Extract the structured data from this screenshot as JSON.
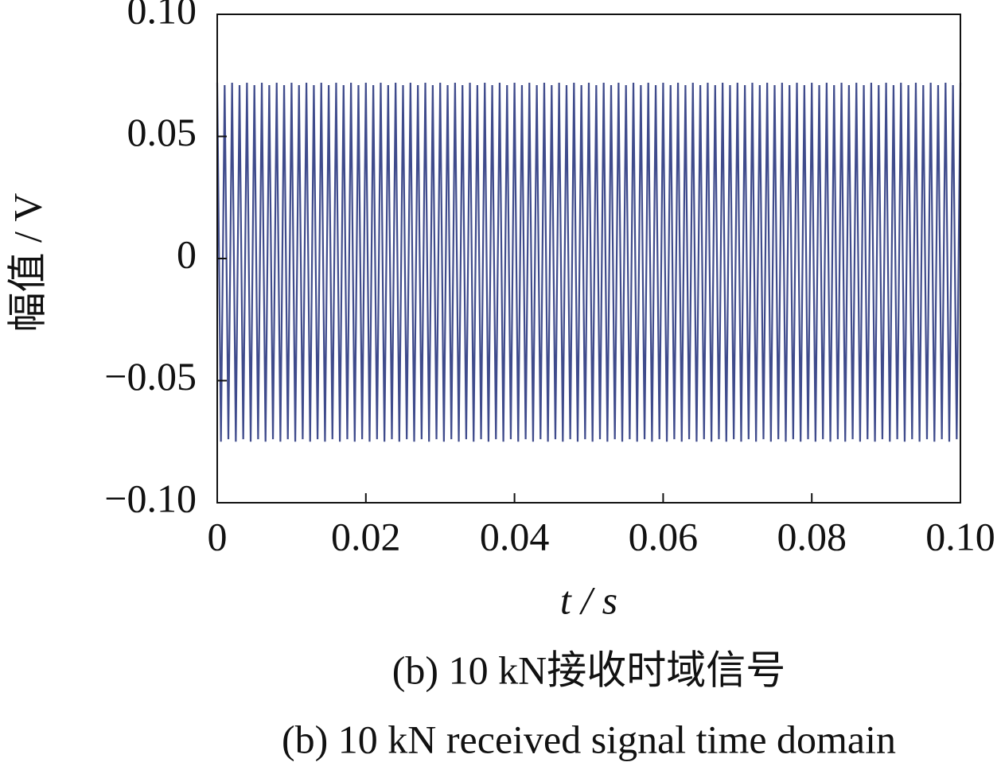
{
  "chart_data": {
    "type": "line",
    "ylabel": "幅值 / V",
    "xlabel": "t / s",
    "captions": [
      "(b)  10 kN接收时域信号",
      "(b)  10 kN received signal time domain"
    ],
    "xlim": [
      0,
      0.1
    ],
    "ylim": [
      -0.1,
      0.1
    ],
    "xticks": [
      0,
      0.02,
      0.04,
      0.06,
      0.08,
      {
        "value": 0.1,
        "label": "0.10"
      }
    ],
    "yticks": [
      {
        "value": -0.1,
        "label": "−0.10"
      },
      {
        "value": -0.05,
        "label": "−0.05"
      },
      0,
      0.05,
      {
        "value": 0.1,
        "label": "0.10"
      }
    ],
    "x": [
      0,
      0.0005,
      0.001,
      0.0015,
      0.002,
      0.0025,
      0.003,
      0.0035,
      0.004,
      0.0045,
      0.005,
      0.0055,
      0.006,
      0.0065,
      0.007,
      0.0075,
      0.008,
      0.0085,
      0.009,
      0.0095,
      0.01,
      0.0105,
      0.011,
      0.0115,
      0.012,
      0.0125,
      0.013,
      0.0135,
      0.014,
      0.0145,
      0.015,
      0.0155,
      0.016,
      0.0165,
      0.017,
      0.0175,
      0.018,
      0.0185,
      0.019,
      0.0195,
      0.02,
      0.0205,
      0.021,
      0.0215,
      0.022,
      0.0225,
      0.023,
      0.0235,
      0.024,
      0.0245,
      0.025,
      0.0255,
      0.026,
      0.0265,
      0.027,
      0.0275,
      0.028,
      0.0285,
      0.029,
      0.0295,
      0.03,
      0.0305,
      0.031,
      0.0315,
      0.032,
      0.0325,
      0.033,
      0.0335,
      0.034,
      0.0345,
      0.035,
      0.0355,
      0.036,
      0.0365,
      0.037,
      0.0375,
      0.038,
      0.0385,
      0.039,
      0.0395,
      0.04,
      0.0405,
      0.041,
      0.0415,
      0.042,
      0.0425,
      0.043,
      0.0435,
      0.044,
      0.0445,
      0.045,
      0.0455,
      0.046,
      0.0465,
      0.047,
      0.0475,
      0.048,
      0.0485,
      0.049,
      0.0495,
      0.05,
      0.0505,
      0.051,
      0.0515,
      0.052,
      0.0525,
      0.053,
      0.0535,
      0.054,
      0.0545,
      0.055,
      0.0555,
      0.056,
      0.0565,
      0.057,
      0.0575,
      0.058,
      0.0585,
      0.059,
      0.0595,
      0.06,
      0.0605,
      0.061,
      0.0615,
      0.062,
      0.0625,
      0.063,
      0.0635,
      0.064,
      0.0645,
      0.065,
      0.0655,
      0.066,
      0.0665,
      0.067,
      0.0675,
      0.068,
      0.0685,
      0.069,
      0.0695,
      0.07,
      0.0705,
      0.071,
      0.0715,
      0.072,
      0.0725,
      0.073,
      0.0735,
      0.074,
      0.0745,
      0.075,
      0.0755,
      0.076,
      0.0765,
      0.077,
      0.0775,
      0.078,
      0.0785,
      0.079,
      0.0795,
      0.08,
      0.0805,
      0.081,
      0.0815,
      0.082,
      0.0825,
      0.083,
      0.0835,
      0.084,
      0.0845,
      0.085,
      0.0855,
      0.086,
      0.0865,
      0.087,
      0.0875,
      0.088,
      0.0885,
      0.089,
      0.0895,
      0.09,
      0.0905,
      0.091,
      0.0915,
      0.092,
      0.0925,
      0.093,
      0.0935,
      0.094,
      0.0945,
      0.095,
      0.0955,
      0.096,
      0.0965,
      0.097,
      0.0975,
      0.098,
      0.0985,
      0.099,
      0.0995,
      0.1
    ],
    "series": [
      {
        "color": "#3f4b8c",
        "values": [
          0.072,
          -0.075,
          0.071,
          -0.074,
          0.072,
          -0.075,
          0.071,
          -0.074,
          0.072,
          -0.075,
          0.071,
          -0.074,
          0.072,
          -0.075,
          0.071,
          -0.074,
          0.072,
          -0.075,
          0.071,
          -0.074,
          0.072,
          -0.075,
          0.071,
          -0.074,
          0.072,
          -0.075,
          0.071,
          -0.074,
          0.072,
          -0.075,
          0.071,
          -0.074,
          0.072,
          -0.075,
          0.071,
          -0.074,
          0.072,
          -0.075,
          0.071,
          -0.074,
          0.072,
          -0.075,
          0.071,
          -0.074,
          0.072,
          -0.075,
          0.071,
          -0.074,
          0.072,
          -0.075,
          0.071,
          -0.074,
          0.072,
          -0.075,
          0.071,
          -0.074,
          0.072,
          -0.075,
          0.071,
          -0.074,
          0.072,
          -0.075,
          0.071,
          -0.074,
          0.072,
          -0.075,
          0.071,
          -0.074,
          0.072,
          -0.075,
          0.071,
          -0.074,
          0.072,
          -0.075,
          0.071,
          -0.074,
          0.072,
          -0.075,
          0.071,
          -0.074,
          0.072,
          -0.075,
          0.071,
          -0.074,
          0.072,
          -0.075,
          0.071,
          -0.074,
          0.072,
          -0.075,
          0.071,
          -0.074,
          0.072,
          -0.075,
          0.071,
          -0.074,
          0.072,
          -0.075,
          0.071,
          -0.074,
          0.072,
          -0.075,
          0.071,
          -0.074,
          0.072,
          -0.075,
          0.071,
          -0.074,
          0.072,
          -0.075,
          0.071,
          -0.074,
          0.072,
          -0.075,
          0.071,
          -0.074,
          0.072,
          -0.075,
          0.071,
          -0.074,
          0.072,
          -0.075,
          0.071,
          -0.074,
          0.072,
          -0.075,
          0.071,
          -0.074,
          0.072,
          -0.075,
          0.071,
          -0.074,
          0.072,
          -0.075,
          0.071,
          -0.074,
          0.072,
          -0.075,
          0.071,
          -0.074,
          0.072,
          -0.075,
          0.071,
          -0.074,
          0.072,
          -0.075,
          0.071,
          -0.074,
          0.072,
          -0.075,
          0.071,
          -0.074,
          0.072,
          -0.075,
          0.071,
          -0.074,
          0.072,
          -0.075,
          0.071,
          -0.074,
          0.072,
          -0.075,
          0.071,
          -0.074,
          0.072,
          -0.075,
          0.071,
          -0.074,
          0.072,
          -0.075,
          0.071,
          -0.074,
          0.072,
          -0.075,
          0.071,
          -0.074,
          0.072,
          -0.075,
          0.071,
          -0.074,
          0.072,
          -0.075,
          0.071,
          -0.074,
          0.072,
          -0.075,
          0.071,
          -0.074,
          0.072,
          -0.075,
          0.071,
          -0.074,
          0.072,
          -0.075,
          0.071,
          -0.074,
          0.072,
          -0.075,
          0.071,
          -0.074,
          0.072
        ]
      }
    ]
  }
}
